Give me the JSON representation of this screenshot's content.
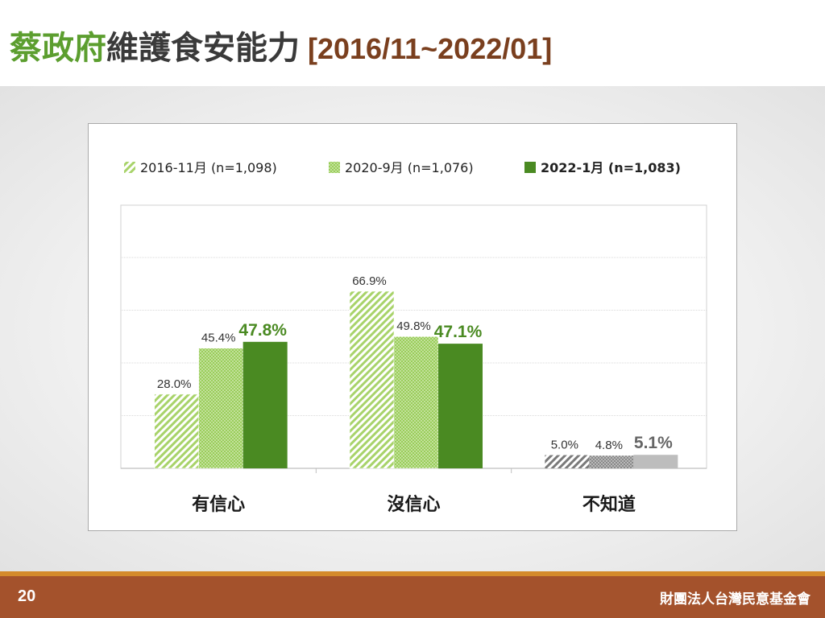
{
  "slide": {
    "title_part1": "蔡政府",
    "title_part2": "維護食安能力",
    "title_range": "[2016/11~2022/01]",
    "page_number": "20",
    "organization": "財團法人台灣民意基金會"
  },
  "colors": {
    "title_green": "#5c9e2f",
    "title_brown": "#7a3f1e",
    "series_hatch": "#a8d36a",
    "series_dots": "#9acd5a",
    "series_solid": "#4a8a22",
    "grey_hatch": "#7a7a7a",
    "grey_dots": "#8a8a8a",
    "grey_solid": "#bdbdbd",
    "footer": "#a4522c",
    "footer_line": "#d48a2b"
  },
  "chart_data": {
    "type": "bar",
    "categories": [
      "有信心",
      "沒信心",
      "不知道"
    ],
    "series": [
      {
        "name": "2016-11月  (n=1,098)",
        "values": [
          28.0,
          66.9,
          5.0
        ],
        "labels": [
          "28.0%",
          "66.9%",
          "5.0%"
        ]
      },
      {
        "name": "2020-9月  (n=1,076)",
        "values": [
          45.4,
          49.8,
          4.8
        ],
        "labels": [
          "45.4%",
          "49.8%",
          "4.8%"
        ]
      },
      {
        "name": "2022-1月  (n=1,083)",
        "values": [
          47.8,
          47.1,
          5.1
        ],
        "labels": [
          "47.8%",
          "47.1%",
          "5.1%"
        ]
      }
    ],
    "ylim": [
      0,
      100
    ],
    "grid": true,
    "legend_position": "top-left"
  }
}
